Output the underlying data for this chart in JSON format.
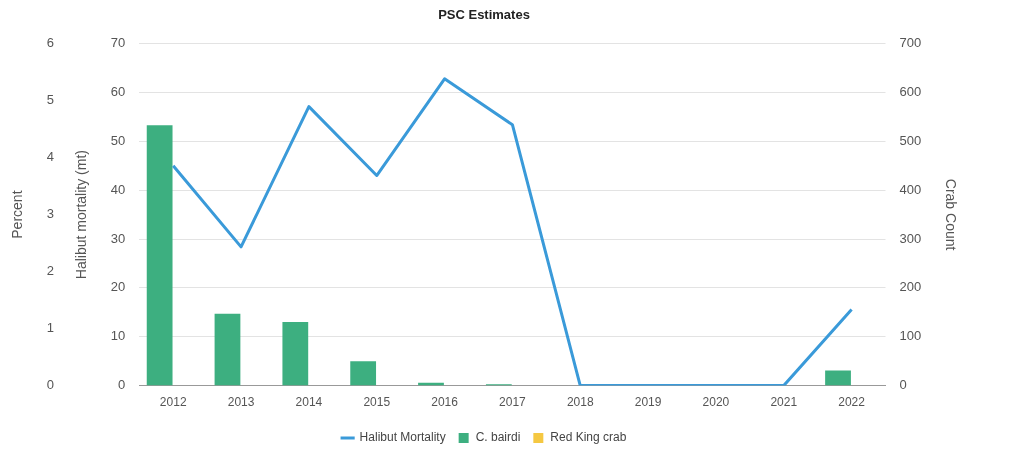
{
  "chart_data": {
    "type": "bar",
    "title": "PSC Estimates",
    "ylabel": "Halibut mortality (mt)",
    "y2label": "Crab Count",
    "y3label": "Percent",
    "categories": [
      "2012",
      "2013",
      "2014",
      "2015",
      "2016",
      "2017",
      "2018",
      "2019",
      "2020",
      "2021",
      "2022"
    ],
    "series": [
      {
        "name": "Halibut Mortality",
        "type": "line",
        "color": "#3a9ad9",
        "values": [
          45,
          28.4,
          57.1,
          43,
          62.8,
          53.4,
          0,
          0,
          0,
          0,
          15.6
        ]
      },
      {
        "name": "C. bairdi",
        "axis": "y2",
        "color": "#3daf80",
        "values": [
          533,
          147,
          130,
          50,
          6,
          3,
          0,
          0,
          0,
          0,
          31
        ]
      },
      {
        "name": "Red King crab",
        "axis": "y2",
        "color": "#f5c842",
        "values": [
          0,
          0,
          0,
          0,
          0,
          0,
          0,
          0,
          0,
          0,
          0
        ]
      }
    ],
    "ylim": [
      0,
      70
    ],
    "yticks": [
      0,
      10,
      20,
      30,
      40,
      50,
      60,
      70
    ],
    "y2lim": [
      0,
      700
    ],
    "y2ticks": [
      0,
      100,
      200,
      300,
      400,
      500,
      600,
      700
    ],
    "y3lim": [
      0,
      6
    ],
    "y3ticks": [
      0,
      1,
      2,
      3,
      4,
      5,
      6
    ],
    "grid": "y",
    "legend": "bottom",
    "marker": "none",
    "line_style": "solid"
  }
}
